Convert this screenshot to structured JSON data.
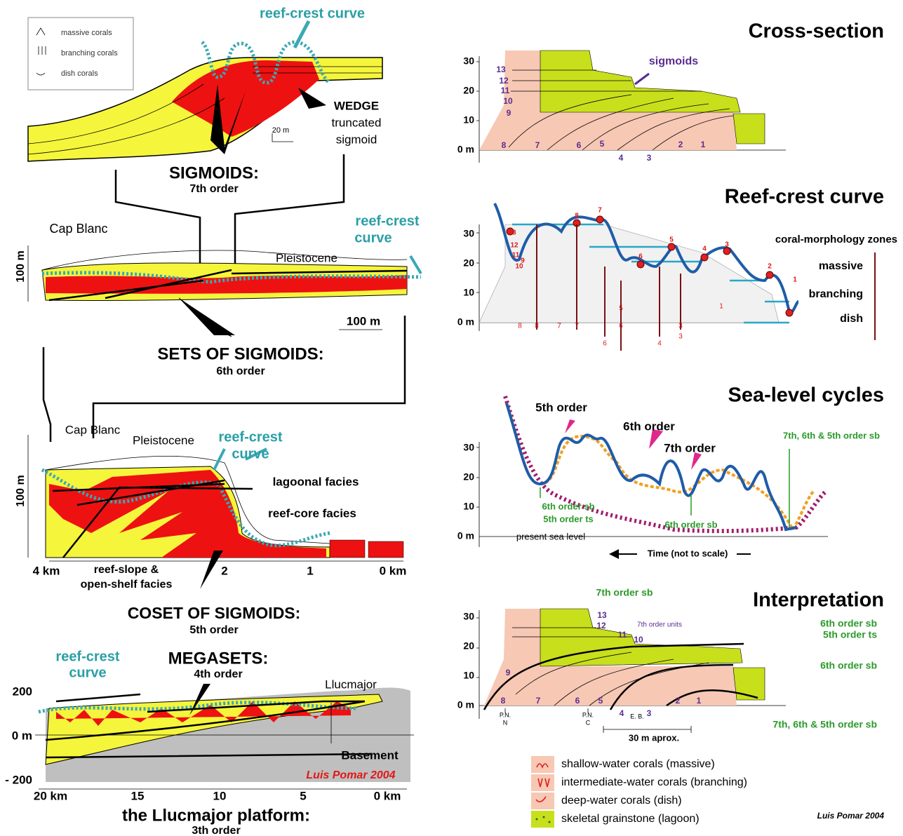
{
  "legend_top": {
    "massive": "massive corals",
    "branching": "branching corals",
    "dish": "dish corals"
  },
  "sigmoids": {
    "reef_crest": "reef-crest curve",
    "wedge": [
      "WEDGE",
      "truncated",
      "sigmoid"
    ],
    "scale": "20 m",
    "title": "SIGMOIDS:",
    "order": "7th order"
  },
  "sets": {
    "cap_blanc": "Cap Blanc",
    "pleistocene": "Pleistocene",
    "reef_crest": [
      "reef-crest",
      "curve"
    ],
    "height": "100 m",
    "scale": "100 m",
    "title": "SETS OF SIGMOIDS:",
    "order": "6th order"
  },
  "coset": {
    "cap_blanc": "Cap Blanc",
    "pleistocene": "Pleistocene",
    "reef_crest": [
      "reef-crest",
      "curve"
    ],
    "lagoonal": "lagoonal facies",
    "reef_core": "reef-core facies",
    "reef_slope": [
      "reef-slope &",
      "open-shelf facies"
    ],
    "height": "100 m",
    "distances": [
      "4 km",
      "2",
      "1",
      "0 km"
    ],
    "title": "COSET OF SIGMOIDS:",
    "order": "5th order"
  },
  "megasets": {
    "reef_crest": [
      "reef-crest",
      "curve"
    ],
    "title": "MEGASETS:",
    "order": "4th order",
    "llucmajor": "Llucmajor",
    "heights": [
      "200",
      "0 m",
      "- 200"
    ],
    "basement": "Basement",
    "credit": "Luis Pomar 2004",
    "distances": [
      "20 km",
      "15",
      "10",
      "5",
      "0 km"
    ],
    "platform": "the Llucmajor platform:",
    "platform_order": "3th order"
  },
  "cross_section": {
    "title": "Cross-section",
    "heights": [
      "0 m",
      "10",
      "20",
      "30"
    ],
    "units": [
      "1",
      "2",
      "3",
      "4",
      "5",
      "6",
      "7",
      "8",
      "9",
      "10",
      "11",
      "12",
      "13"
    ],
    "sigmoids": "sigmoids"
  },
  "reef_crest": {
    "title": "Reef-crest curve",
    "heights": [
      "0 m",
      "10",
      "20",
      "30"
    ],
    "zones": "coral-morphology zones",
    "massive": "massive",
    "branching": "branching",
    "dish": "dish",
    "points": [
      "1",
      "2",
      "3",
      "4",
      "5",
      "6",
      "7",
      "8",
      "9",
      "10",
      "11",
      "12",
      "13"
    ],
    "circled": [
      "8",
      "8",
      "7",
      "7",
      "6",
      "6",
      "5",
      "4",
      "3",
      "3",
      "1"
    ]
  },
  "sea_level": {
    "title": "Sea-level cycles",
    "heights": [
      "0 m",
      "10",
      "20",
      "30"
    ],
    "orders": [
      "5th order",
      "6th order",
      "7th order"
    ],
    "sb_all": "7th, 6th & 5th order sb",
    "sb6_left": [
      "6th order sb",
      "5th order ts"
    ],
    "sb6_right": "6th order sb",
    "present": "present sea level",
    "time": "Time (not to scale)"
  },
  "interpretation": {
    "title": "Interpretation",
    "heights": [
      "0 m",
      "10",
      "20",
      "30"
    ],
    "sb7": "7th order sb",
    "units": [
      "1",
      "2",
      "3",
      "4",
      "5",
      "6",
      "7",
      "8",
      "9",
      "10",
      "11",
      "12",
      "13"
    ],
    "units_label": "7th order units",
    "sb6_ts5": [
      "6th order sb",
      "5th order ts"
    ],
    "sb6": "6th order sb",
    "sb_all": "7th, 6th & 5th order sb",
    "sections": [
      "P.N.",
      "N",
      "P.N.",
      "C",
      "E. B."
    ],
    "scale": "30 m aprox."
  },
  "legend": [
    "shallow-water corals (massive)",
    "intermediate-water corals (branching)",
    "deep-water corals (dish)",
    "skeletal grainstone (lagoon)"
  ],
  "credit": "Luis Pomar 2004"
}
